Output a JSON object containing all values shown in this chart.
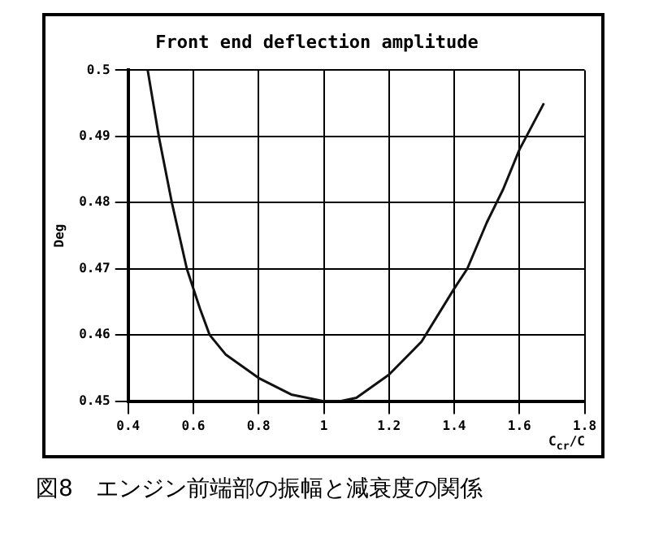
{
  "chart_data": {
    "type": "line",
    "title": "Front end deflection amplitude",
    "xlabel": "C$_{cr}$/C",
    "ylabel": "Deg",
    "annotations": [
      "図8　エンジン前端部の振幅と減衰度の関係"
    ],
    "series": [
      {
        "color": "#111111",
        "x": [
          0.46,
          0.494,
          0.534,
          0.58,
          0.62,
          0.65,
          0.7,
          0.8,
          0.9,
          1.0,
          1.05,
          1.1,
          1.2,
          1.3,
          1.4,
          1.44,
          1.5,
          1.55,
          1.6,
          1.675
        ],
        "values": [
          0.5,
          0.49,
          0.48,
          0.47,
          0.464,
          0.46,
          0.457,
          0.4535,
          0.451,
          0.45,
          0.45,
          0.4505,
          0.454,
          0.459,
          0.467,
          0.47,
          0.477,
          0.482,
          0.488,
          0.495
        ]
      }
    ],
    "xlim": [
      0.4,
      1.8
    ],
    "xticks": [
      0.4,
      0.6,
      0.8,
      1,
      1.2,
      1.4,
      1.6,
      1.8
    ],
    "ylim": [
      0.45,
      0.5
    ],
    "yticks": [
      0.45,
      0.46,
      0.47,
      0.48,
      0.49,
      0.5
    ],
    "grid": true,
    "legend": false,
    "marker": "none",
    "line_style": "solid"
  }
}
